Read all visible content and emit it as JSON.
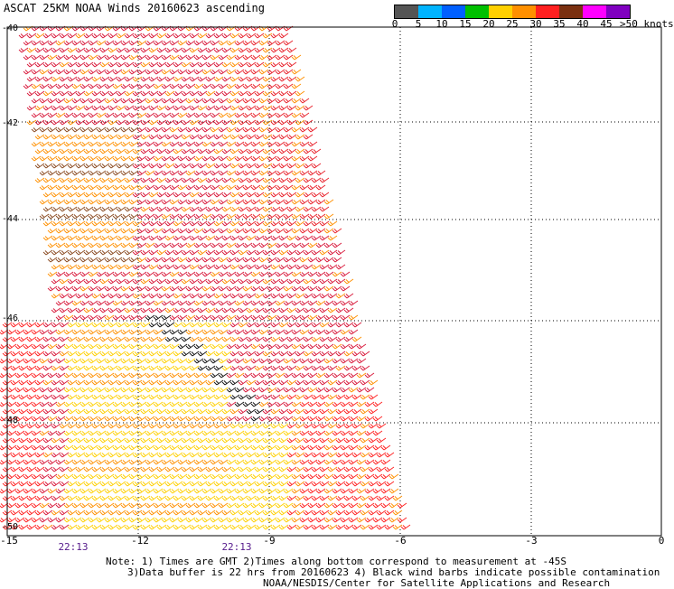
{
  "title": "ASCAT 25KM NOAA Winds 20160623 ascending",
  "colorbar": {
    "colors": [
      "#555555",
      "#00b4ff",
      "#0060ff",
      "#00c000",
      "#ffd000",
      "#ff9000",
      "#ff2020",
      "#7a3010",
      "#ff00ff",
      "#8000c0"
    ],
    "labels": [
      "0",
      "5",
      "10",
      "15",
      "20",
      "25",
      "30",
      "35",
      "40",
      "45",
      ">50 knots"
    ]
  },
  "axes": {
    "y_ticks": [
      "-40",
      "-42",
      "-44",
      "-46",
      "-48",
      "-50"
    ],
    "x_ticks": [
      "-15",
      "-12",
      "-9",
      "-6",
      "-3",
      "0"
    ]
  },
  "times": [
    "22:13",
    "22:13"
  ],
  "notes": [
    "Note: 1) Times are GMT 2)Times along bottom correspond to measurement at -45S",
    "3)Data buffer is 22 hrs from 20160623 4) Black wind barbs indicate possible contamination",
    "NOAA/NESDIS/Center for Satellite Applications and Research"
  ]
}
